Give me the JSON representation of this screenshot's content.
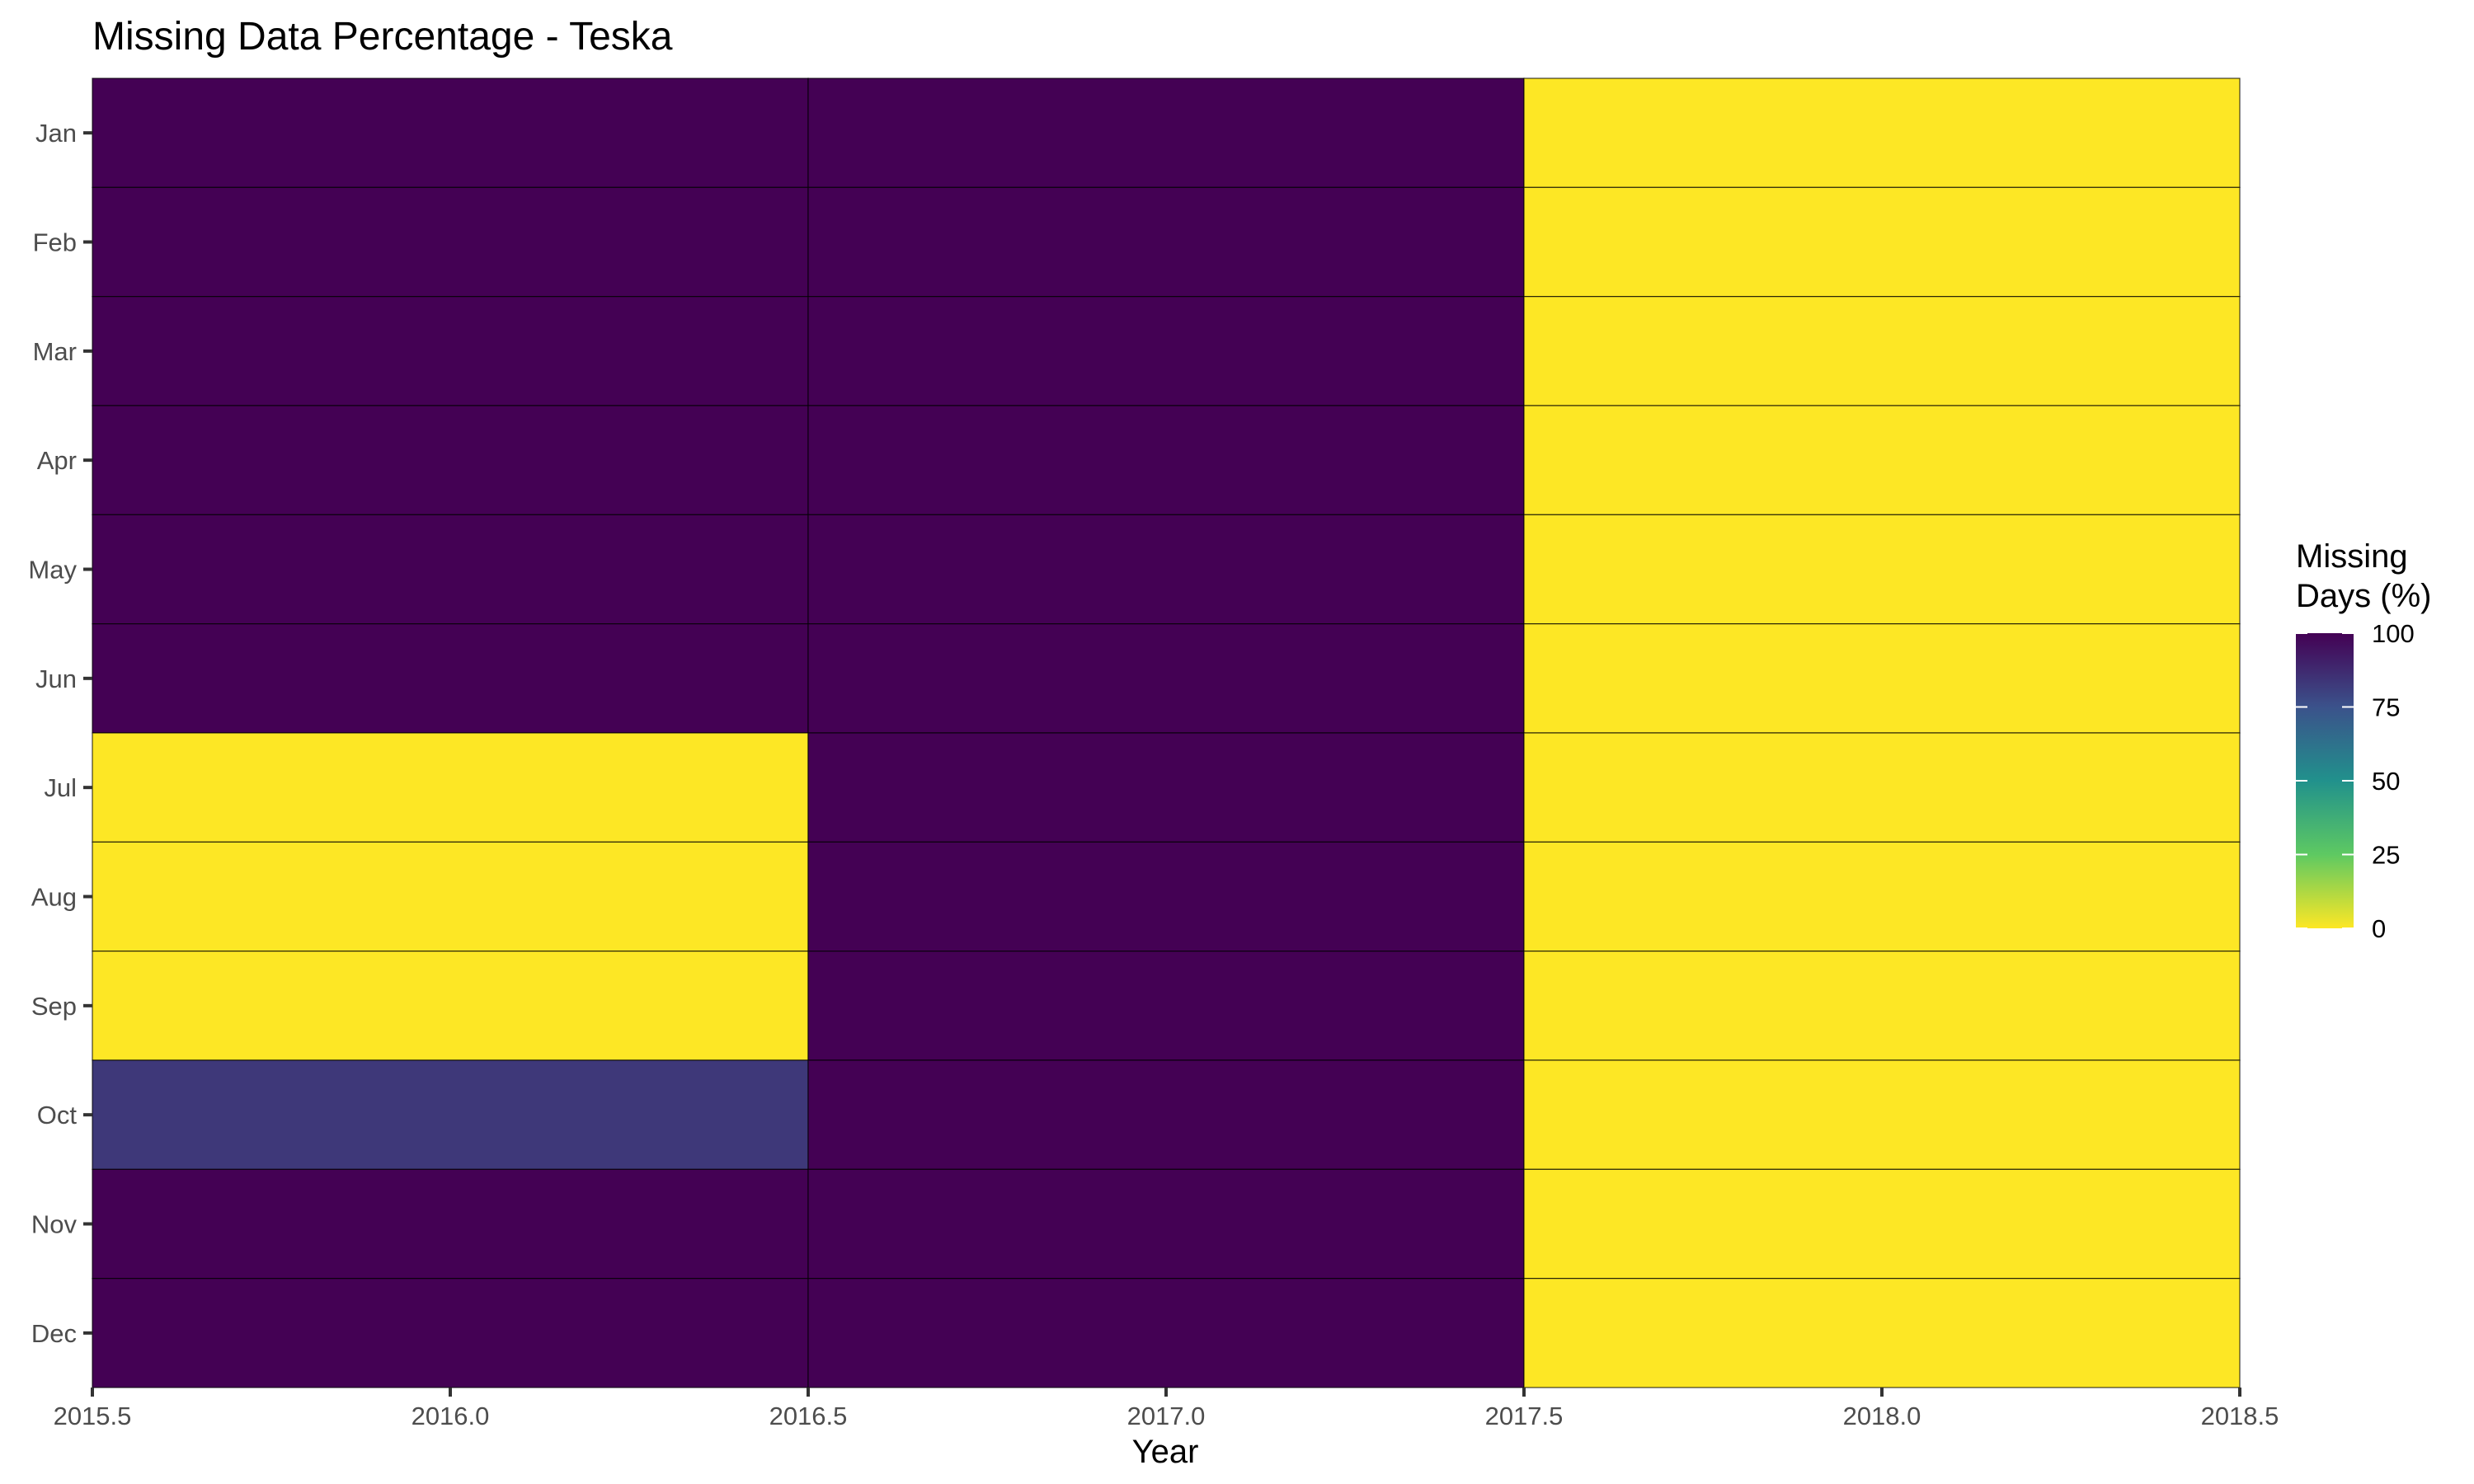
{
  "chart_data": {
    "type": "heatmap",
    "title": "Missing Data Percentage - Teska",
    "xlabel": "Year",
    "ylabel": "",
    "x": [
      2016,
      2017,
      2018
    ],
    "xlim": [
      2015.5,
      2018.5
    ],
    "xticks": [
      "2015.5",
      "2016.0",
      "2016.5",
      "2017.0",
      "2017.5",
      "2018.0",
      "2018.5"
    ],
    "y": [
      "Jan",
      "Feb",
      "Mar",
      "Apr",
      "May",
      "Jun",
      "Jul",
      "Aug",
      "Sep",
      "Oct",
      "Nov",
      "Dec"
    ],
    "values": [
      [
        100,
        100,
        0
      ],
      [
        100,
        100,
        0
      ],
      [
        100,
        100,
        0
      ],
      [
        100,
        100,
        0
      ],
      [
        100,
        100,
        0
      ],
      [
        100,
        100,
        0
      ],
      [
        0,
        100,
        0
      ],
      [
        0,
        100,
        0
      ],
      [
        0,
        100,
        0
      ],
      [
        83,
        100,
        0
      ],
      [
        100,
        100,
        0
      ],
      [
        100,
        100,
        0
      ]
    ],
    "legend": {
      "title_lines": [
        "Missing",
        "Days (%)"
      ],
      "ticks": [
        100,
        75,
        50,
        25,
        0
      ],
      "range": [
        0,
        100
      ],
      "placement": "right"
    },
    "colorscale": [
      "#fde725",
      "#5ec962",
      "#21918c",
      "#3b528b",
      "#440154"
    ],
    "grid": false
  }
}
